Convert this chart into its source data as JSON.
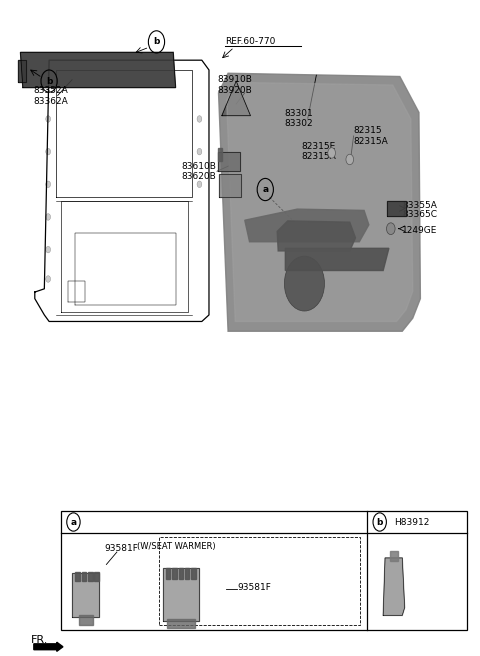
{
  "bg_color": "#ffffff",
  "fig_width": 4.8,
  "fig_height": 6.56,
  "dpi": 100,
  "fs_small": 6.5,
  "fs_tiny": 6.0,
  "lw": 0.6,
  "labels": {
    "83352A": "83352A",
    "83362A": "83362A",
    "REF60770": "REF.60-770",
    "83910B": "83910B",
    "83920B": "83920B",
    "83301": "83301",
    "83302": "83302",
    "82315": "82315",
    "82315A_r": "82315A",
    "82315E": "82315E",
    "82315A_l": "82315A",
    "83610B": "83610B",
    "83620B": "83620B",
    "83355A": "83355A",
    "83365C": "83365C",
    "1249GE": "1249GE",
    "93581F": "93581F",
    "wseat": "(W/SEAT WARMER)",
    "H83912": "H83912",
    "FR": "FR."
  },
  "colors": {
    "dark_trim": "#3a3a3a",
    "mid_gray": "#7a7a7a",
    "light_gray": "#9a9a9a",
    "panel_main": "#808080",
    "panel_light": "#a0a0a0",
    "triangle": "#606060",
    "clip": "#707070",
    "bolt": "#888888",
    "switch": "#888888",
    "switch_btn": "#555555",
    "side_piece": "#404040"
  }
}
